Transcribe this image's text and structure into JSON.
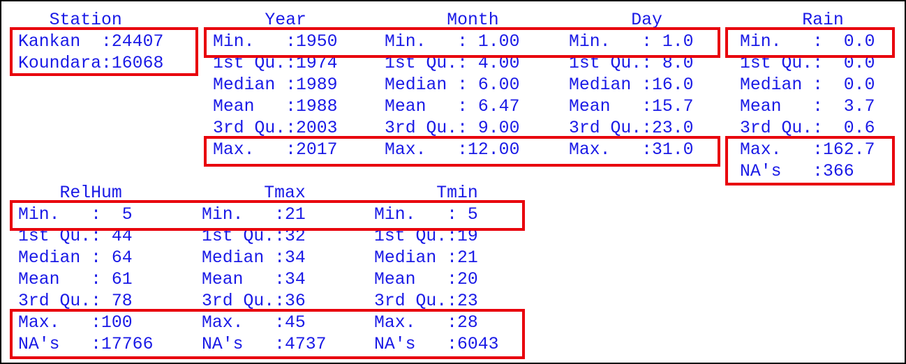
{
  "colors": {
    "text": "#1a1ae6",
    "highlight": "#e8000b",
    "border": "#000000"
  },
  "headers": {
    "station": "   Station",
    "year": "     Year",
    "month": "      Month",
    "day": "      Day",
    "rain": "      Rain",
    "relhum": "    RelHum",
    "tmax": "      Tmax",
    "tmin": "      Tmin"
  },
  "station": {
    "rows": [
      "Kankan  :24407",
      "Koundara:16068"
    ]
  },
  "year": {
    "rows": [
      "Min.   :1950",
      "1st Qu.:1974",
      "Median :1989",
      "Mean   :1988",
      "3rd Qu.:2003",
      "Max.   :2017"
    ]
  },
  "month": {
    "rows": [
      "Min.   : 1.00",
      "1st Qu.: 4.00",
      "Median : 6.00",
      "Mean   : 6.47",
      "3rd Qu.: 9.00",
      "Max.   :12.00"
    ]
  },
  "day": {
    "rows": [
      "Min.   : 1.0",
      "1st Qu.: 8.0",
      "Median :16.0",
      "Mean   :15.7",
      "3rd Qu.:23.0",
      "Max.   :31.0"
    ]
  },
  "rain": {
    "rows": [
      "Min.   :  0.0",
      "1st Qu.:  0.0",
      "Median :  0.0",
      "Mean   :  3.7",
      "3rd Qu.:  0.6",
      "Max.   :162.7",
      "NA's   :366"
    ]
  },
  "relhum": {
    "rows": [
      "Min.   :  5",
      "1st Qu.: 44",
      "Median : 64",
      "Mean   : 61",
      "3rd Qu.: 78",
      "Max.   :100",
      "NA's   :17766"
    ]
  },
  "tmax": {
    "rows": [
      "Min.   :21",
      "1st Qu.:32",
      "Median :34",
      "Mean   :34",
      "3rd Qu.:36",
      "Max.   :45",
      "NA's   :4737"
    ]
  },
  "tmin": {
    "rows": [
      "Min.   : 5",
      "1st Qu.:19",
      "Median :21",
      "Mean   :20",
      "3rd Qu.:23",
      "Max.   :28",
      "NA's   :6043"
    ]
  }
}
